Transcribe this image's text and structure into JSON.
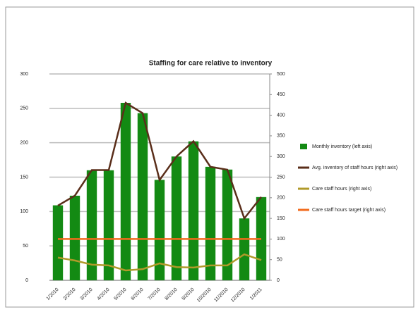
{
  "chart_data": {
    "type": "bar-line",
    "title": "Staffing for care relative to inventory",
    "categories": [
      "1/2010",
      "2/2010",
      "3/2010",
      "4/2010",
      "5/2010",
      "6/2010",
      "7/2010",
      "8/2010",
      "9/2010",
      "10/2010",
      "11/2010",
      "12/2010",
      "1/2011"
    ],
    "series": [
      {
        "name": "Monthly inventory (left axis)",
        "type": "bar",
        "color": "#138a13",
        "values": [
          109,
          123,
          160,
          160,
          258,
          243,
          146,
          180,
          202,
          165,
          161,
          90,
          121
        ]
      },
      {
        "name": "Avg. inventory of staff hours (right axis)",
        "type": "line",
        "axis": "y2",
        "color": "#5a2e1a",
        "values": [
          181,
          205,
          267,
          267,
          430,
          405,
          243,
          300,
          337,
          275,
          268,
          150,
          202
        ]
      },
      {
        "name": "Care staff hours (right axis)",
        "type": "line",
        "axis": "y2",
        "color": "#b09a2a",
        "values": [
          55,
          48,
          38,
          36,
          24,
          27,
          41,
          32,
          31,
          36,
          36,
          63,
          49
        ]
      },
      {
        "name": "Care staff hours target (right axis)",
        "type": "line",
        "axis": "y2",
        "color": "#f26b1d",
        "values": [
          100,
          100,
          100,
          100,
          100,
          100,
          100,
          100,
          100,
          100,
          100,
          100,
          100
        ]
      }
    ],
    "ylim": [
      0,
      300
    ],
    "yticks": [
      0,
      50,
      100,
      150,
      200,
      250,
      300
    ],
    "y2lim": [
      0,
      500
    ],
    "y2ticks": [
      0,
      50,
      100,
      150,
      200,
      250,
      300,
      350,
      400,
      450,
      500
    ],
    "grid": true,
    "legend": "right"
  }
}
